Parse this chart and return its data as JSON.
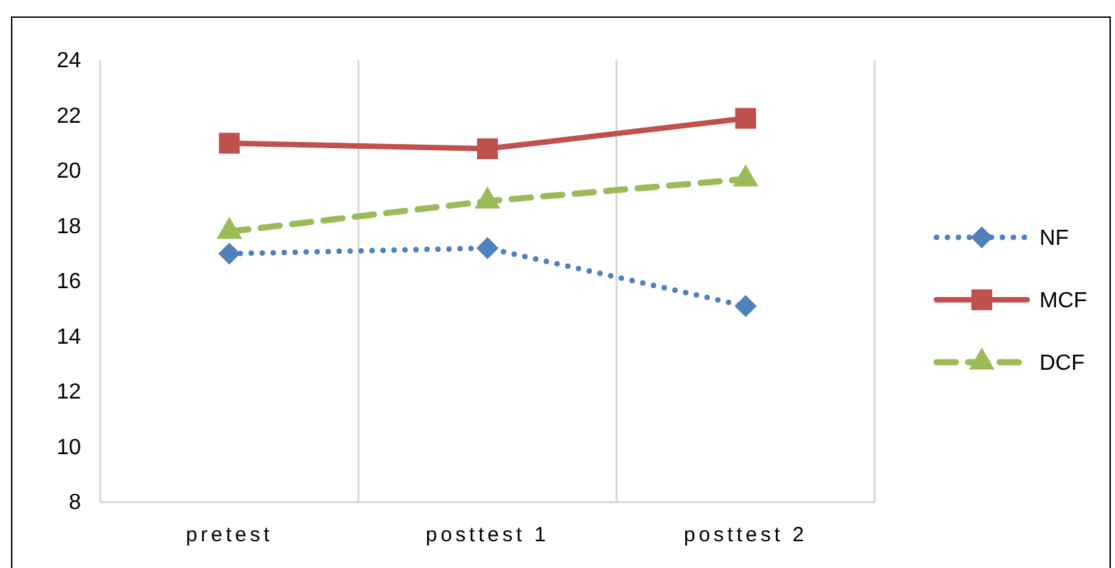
{
  "chart_data": {
    "type": "line",
    "categories": [
      "pretest",
      "posttest 1",
      "posttest 2"
    ],
    "series": [
      {
        "name": "NF",
        "color": "#4f81bd",
        "values": [
          17.0,
          17.2,
          15.1
        ],
        "marker": "diamond",
        "line_style": "dotted"
      },
      {
        "name": "MCF",
        "color": "#c0504d",
        "values": [
          21.0,
          20.8,
          21.9
        ],
        "marker": "square",
        "line_style": "solid"
      },
      {
        "name": "DCF",
        "color": "#9bbb59",
        "values": [
          17.8,
          18.9,
          19.7
        ],
        "marker": "triangle",
        "line_style": "dashed"
      }
    ],
    "ylim": [
      8,
      24
    ],
    "yticks": [
      8,
      10,
      12,
      14,
      16,
      18,
      20,
      22,
      24
    ],
    "grid": "x",
    "legend": "right"
  }
}
